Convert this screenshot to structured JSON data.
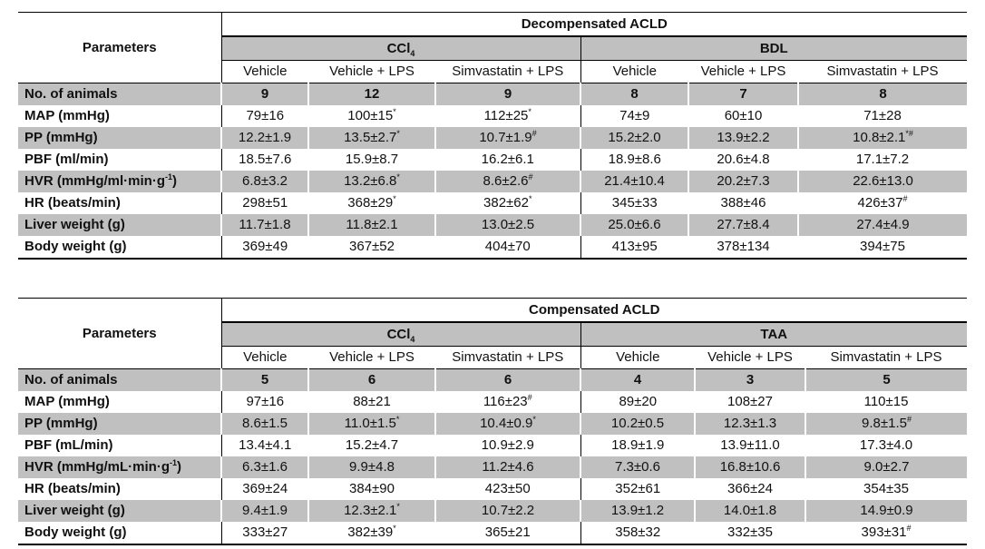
{
  "tables": [
    {
      "params_header": "Parameters",
      "title": "Decompensated ACLD",
      "groups": [
        {
          "label": "CCl",
          "sub": "4"
        },
        {
          "label": "BDL",
          "sub": ""
        }
      ],
      "columns": [
        "Vehicle",
        "Vehicle + LPS",
        "Simvastatin + LPS",
        "Vehicle",
        "Vehicle + LPS",
        "Simvastatin + LPS"
      ],
      "rows": [
        {
          "label": {
            "text": "No. of animals"
          },
          "bold": true,
          "cells": [
            {
              "value": "9"
            },
            {
              "value": "12"
            },
            {
              "value": "9"
            },
            {
              "value": "8"
            },
            {
              "value": "7"
            },
            {
              "value": "8"
            }
          ]
        },
        {
          "label": {
            "text": "MAP (mmHg)"
          },
          "cells": [
            {
              "value": "79±16"
            },
            {
              "value": "100±15",
              "mark": "*"
            },
            {
              "value": "112±25",
              "mark": "*"
            },
            {
              "value": "74±9"
            },
            {
              "value": "60±10"
            },
            {
              "value": "71±28"
            }
          ]
        },
        {
          "label": {
            "text": "PP (mmHg)"
          },
          "cells": [
            {
              "value": "12.2±1.9"
            },
            {
              "value": "13.5±2.7",
              "mark": "*"
            },
            {
              "value": "10.7±1.9",
              "mark": "#"
            },
            {
              "value": "15.2±2.0"
            },
            {
              "value": "13.9±2.2"
            },
            {
              "value": "10.8±2.1",
              "mark": "*#"
            }
          ]
        },
        {
          "label": {
            "text": "PBF (ml/min)"
          },
          "cells": [
            {
              "value": "18.5±7.6"
            },
            {
              "value": "15.9±8.7"
            },
            {
              "value": "16.2±6.1"
            },
            {
              "value": "18.9±8.6"
            },
            {
              "value": "20.6±4.8"
            },
            {
              "value": "17.1±7.2"
            }
          ]
        },
        {
          "label": {
            "text": "HVR (mmHg/ml·min·g",
            "sup": "-1",
            "tail": ")"
          },
          "cells": [
            {
              "value": "6.8±3.2"
            },
            {
              "value": "13.2±6.8",
              "mark": "*"
            },
            {
              "value": "8.6±2.6",
              "mark": "#"
            },
            {
              "value": "21.4±10.4"
            },
            {
              "value": "20.2±7.3"
            },
            {
              "value": "22.6±13.0"
            }
          ]
        },
        {
          "label": {
            "text": "HR (beats/min)"
          },
          "cells": [
            {
              "value": "298±51"
            },
            {
              "value": "368±29",
              "mark": "*"
            },
            {
              "value": "382±62",
              "mark": "*"
            },
            {
              "value": "345±33"
            },
            {
              "value": "388±46"
            },
            {
              "value": "426±37",
              "mark": "#"
            }
          ]
        },
        {
          "label": {
            "text": "Liver weight (g)"
          },
          "cells": [
            {
              "value": "11.7±1.8"
            },
            {
              "value": "11.8±2.1"
            },
            {
              "value": "13.0±2.5"
            },
            {
              "value": "25.0±6.6"
            },
            {
              "value": "27.7±8.4"
            },
            {
              "value": "27.4±4.9"
            }
          ]
        },
        {
          "label": {
            "text": "Body weight (g)"
          },
          "cells": [
            {
              "value": "369±49"
            },
            {
              "value": "367±52"
            },
            {
              "value": "404±70"
            },
            {
              "value": "413±95"
            },
            {
              "value": "378±134"
            },
            {
              "value": "394±75"
            }
          ]
        }
      ]
    },
    {
      "params_header": "Parameters",
      "title": "Compensated ACLD",
      "groups": [
        {
          "label": "CCl",
          "sub": "4"
        },
        {
          "label": "TAA",
          "sub": ""
        }
      ],
      "columns": [
        "Vehicle",
        "Vehicle + LPS",
        "Simvastatin + LPS",
        "Vehicle",
        "Vehicle + LPS",
        "Simvastatin + LPS"
      ],
      "rows": [
        {
          "label": {
            "text": "No. of animals"
          },
          "bold": true,
          "cells": [
            {
              "value": "5"
            },
            {
              "value": "6"
            },
            {
              "value": "6"
            },
            {
              "value": "4"
            },
            {
              "value": "3"
            },
            {
              "value": "5"
            }
          ]
        },
        {
          "label": {
            "text": "MAP (mmHg)"
          },
          "cells": [
            {
              "value": "97±16"
            },
            {
              "value": "88±21"
            },
            {
              "value": "116±23",
              "mark": "#"
            },
            {
              "value": "89±20"
            },
            {
              "value": "108±27"
            },
            {
              "value": "110±15"
            }
          ]
        },
        {
          "label": {
            "text": "PP (mmHg)"
          },
          "cells": [
            {
              "value": "8.6±1.5"
            },
            {
              "value": "11.0±1.5",
              "mark": "*"
            },
            {
              "value": "10.4±0.9",
              "mark": "*"
            },
            {
              "value": "10.2±0.5"
            },
            {
              "value": "12.3±1.3"
            },
            {
              "value": "9.8±1.5",
              "mark": "#"
            }
          ]
        },
        {
          "label": {
            "text": "PBF (mL/min)"
          },
          "cells": [
            {
              "value": "13.4±4.1"
            },
            {
              "value": "15.2±4.7"
            },
            {
              "value": "10.9±2.9"
            },
            {
              "value": "18.9±1.9"
            },
            {
              "value": "13.9±11.0"
            },
            {
              "value": "17.3±4.0"
            }
          ]
        },
        {
          "label": {
            "text": "HVR (mmHg/mL·min·g",
            "sup": "-1",
            "tail": ")"
          },
          "cells": [
            {
              "value": "6.3±1.6"
            },
            {
              "value": "9.9±4.8"
            },
            {
              "value": "11.2±4.6"
            },
            {
              "value": "7.3±0.6"
            },
            {
              "value": "16.8±10.6"
            },
            {
              "value": "9.0±2.7"
            }
          ]
        },
        {
          "label": {
            "text": "HR (beats/min)"
          },
          "cells": [
            {
              "value": "369±24"
            },
            {
              "value": "384±90"
            },
            {
              "value": "423±50"
            },
            {
              "value": "352±61"
            },
            {
              "value": "366±24"
            },
            {
              "value": "354±35"
            }
          ]
        },
        {
          "label": {
            "text": "Liver weight (g)"
          },
          "cells": [
            {
              "value": "9.4±1.9"
            },
            {
              "value": "12.3±2.1",
              "mark": "*"
            },
            {
              "value": "10.7±2.2"
            },
            {
              "value": "13.9±1.2"
            },
            {
              "value": "14.0±1.8"
            },
            {
              "value": "14.9±0.9"
            }
          ]
        },
        {
          "label": {
            "text": "Body weight (g)"
          },
          "cells": [
            {
              "value": "333±27"
            },
            {
              "value": "382±39",
              "mark": "*"
            },
            {
              "value": "365±21"
            },
            {
              "value": "358±32"
            },
            {
              "value": "332±35"
            },
            {
              "value": "393±31",
              "mark": "#"
            }
          ]
        }
      ]
    }
  ],
  "colors": {
    "row_shade": "#c0c0c0",
    "rule": "#000000"
  }
}
